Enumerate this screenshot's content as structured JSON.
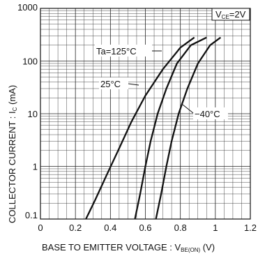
{
  "chart_data": {
    "type": "line",
    "title": "",
    "xlabel_main": "BASE TO EMITTER VOLTAGE : V",
    "xlabel_sub": "BE(ON)",
    "xlabel_unit": " (V)",
    "ylabel_main": "COLLECTOR CURRENT : I",
    "ylabel_sub": "C",
    "ylabel_unit": " (mA)",
    "condition_main": "V",
    "condition_sub": "CE",
    "condition_value": "=2V",
    "xlim": [
      0,
      1.2
    ],
    "ylim": [
      0.1,
      1000
    ],
    "yscale": "log",
    "grid": true,
    "x_ticks": [
      "0",
      "0.2",
      "0.4",
      "0.6",
      "0.8",
      "1",
      "1.2"
    ],
    "y_ticks": [
      "0.1",
      "0.1",
      "1",
      "10",
      "100",
      "1000"
    ],
    "series": [
      {
        "name": "Ta=125°C",
        "x": [
          0.26,
          0.31,
          0.38,
          0.45,
          0.52,
          0.6,
          0.7,
          0.8,
          0.88
        ],
        "y": [
          0.1,
          0.22,
          0.7,
          2.2,
          7,
          22,
          70,
          180,
          280
        ]
      },
      {
        "name": "25°C",
        "x": [
          0.54,
          0.57,
          0.6,
          0.63,
          0.67,
          0.72,
          0.78,
          0.86,
          0.95
        ],
        "y": [
          0.1,
          0.3,
          1,
          3,
          10,
          30,
          90,
          200,
          280
        ]
      },
      {
        "name": "−40°C",
        "x": [
          0.66,
          0.69,
          0.72,
          0.75,
          0.79,
          0.84,
          0.9,
          0.97,
          1.03
        ],
        "y": [
          0.1,
          0.3,
          1,
          3,
          10,
          30,
          90,
          200,
          280
        ]
      }
    ]
  }
}
